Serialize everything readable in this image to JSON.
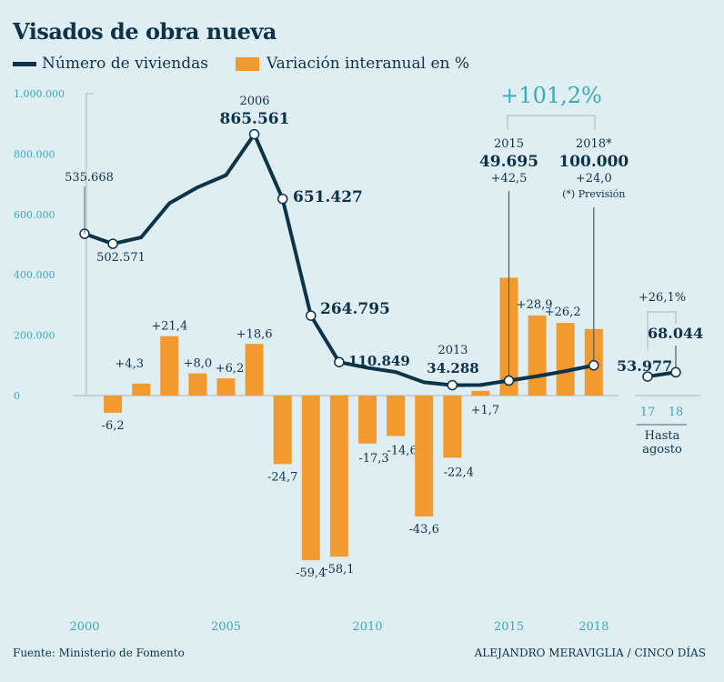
{
  "title": "Visados de obra nueva",
  "legend": {
    "line": "Número de viviendas",
    "bar": "Variación interanual en %"
  },
  "colors": {
    "line": "#0d3349",
    "bar": "#f39a2e",
    "axis_labels": "#3aaab8",
    "background": "#deeef2"
  },
  "source": "Fuente: Ministerio de Fomento",
  "credit": "ALEJANDRO MERAVIGLIA / CINCO DÍAS",
  "chart_data": {
    "type": "bar+line",
    "x": [
      2000,
      2001,
      2002,
      2003,
      2004,
      2005,
      2006,
      2007,
      2008,
      2009,
      2010,
      2011,
      2012,
      2013,
      2014,
      2015,
      2016,
      2017,
      2018
    ],
    "x_tick_labels": [
      "2000",
      "2005",
      "2010",
      "2015",
      "2018"
    ],
    "y_tick_labels": [
      "1.000.000",
      "800.000",
      "600.000",
      "400.000",
      "200.000",
      "0"
    ],
    "ylim": [
      0,
      1000000
    ],
    "series": [
      {
        "name": "Número de viviendas",
        "type": "line",
        "values": [
          535668,
          502571,
          524000,
          637000,
          690000,
          730000,
          865561,
          651427,
          264795,
          110849,
          92000,
          78000,
          44000,
          34288,
          35000,
          49695,
          64000,
          81000,
          100000
        ],
        "labels": [
          "535.668",
          "502.571",
          null,
          null,
          null,
          null,
          "865.561",
          "651.427",
          "264.795",
          "110.849",
          null,
          null,
          null,
          "34.288",
          null,
          null,
          null,
          null,
          null
        ]
      },
      {
        "name": "Variación interanual en %",
        "type": "bar",
        "values": [
          null,
          -6.2,
          4.3,
          21.4,
          8.0,
          6.2,
          18.6,
          -24.7,
          -59.4,
          -58.1,
          -17.3,
          -14.6,
          -43.6,
          -22.4,
          1.7,
          42.5,
          28.9,
          26.2,
          24.0
        ],
        "labels": [
          null,
          "-6,2",
          "+4,3",
          "+21,4",
          "+8,0",
          "+6,2",
          "+18,6",
          "-24,7",
          "-59,4",
          "-58,1",
          "-17,3",
          "-14,6",
          "-43,6",
          "-22,4",
          "+1,7",
          "+42,5",
          "+28,9",
          "+26,2",
          "+24,0"
        ]
      }
    ],
    "annotations": {
      "peak_year": "2006",
      "low_year": "2013",
      "change_2015_2018": "+101,2%",
      "y2015": {
        "year": "2015",
        "value": "49.695",
        "pct": "+42,5"
      },
      "y2018": {
        "year": "2018*",
        "value": "100.000",
        "pct": "+24,0",
        "note": "(*) Previsión"
      }
    },
    "inset": {
      "categories": [
        "17",
        "18"
      ],
      "values": [
        53977,
        68044
      ],
      "labels": [
        "53.977",
        "68.044"
      ],
      "change": "+26,1%",
      "caption": [
        "Hasta",
        "agosto"
      ]
    }
  }
}
